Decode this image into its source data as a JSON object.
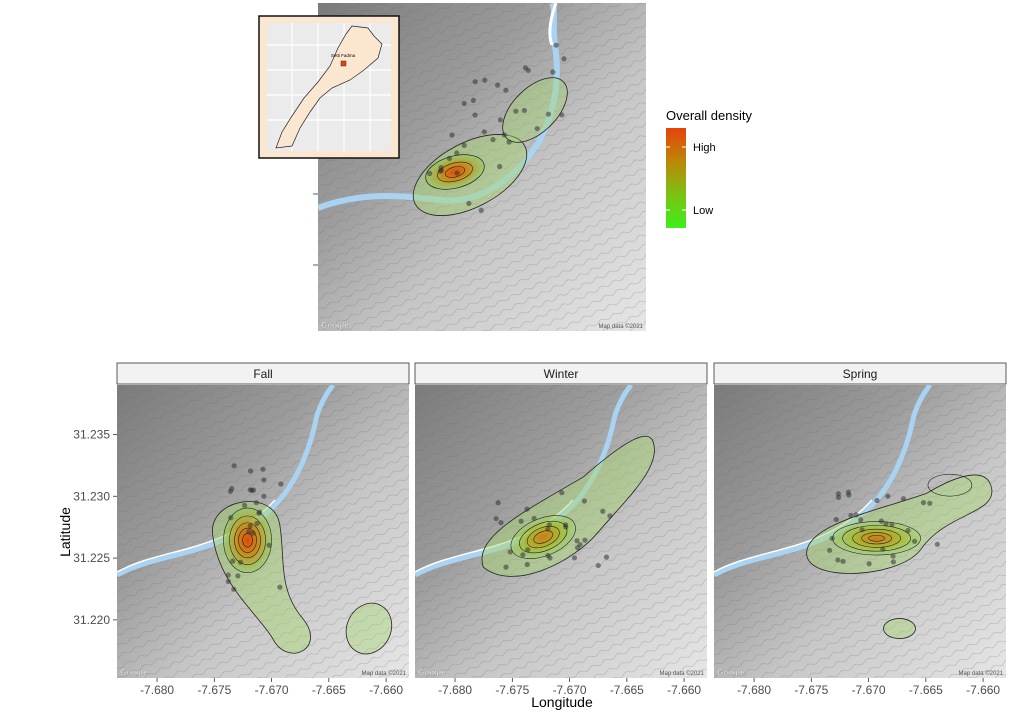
{
  "top_map": {
    "legend": {
      "title": "Overall density",
      "high_label": "High",
      "low_label": "Low",
      "high_color": "#e8420a",
      "low_color": "#3cf01c"
    },
    "inset": {
      "place_label": "Setti Fadma",
      "marker_color": "#e8420a",
      "country_fill": "#fbe6cf"
    },
    "google_mark": "Google",
    "map_credit": "Map data ©2021"
  },
  "facets": [
    {
      "label": "Fall",
      "google_mark": "Google",
      "map_credit": "Map data ©2021"
    },
    {
      "label": "Winter",
      "google_mark": "Google",
      "map_credit": "Map data ©2021"
    },
    {
      "label": "Spring",
      "google_mark": "Google",
      "map_credit": "Map data ©2021"
    }
  ],
  "axes": {
    "xlabel": "Longitude",
    "ylabel": "Latitude",
    "x_ticks": [
      "-7.680",
      "-7.675",
      "-7.670",
      "-7.665",
      "-7.660"
    ],
    "y_ticks": [
      "31.235",
      "31.230",
      "31.225",
      "31.220"
    ],
    "x_tick_values": [
      -7.68,
      -7.675,
      -7.67,
      -7.665,
      -7.66
    ],
    "y_tick_values": [
      31.235,
      31.23,
      31.225,
      31.22
    ],
    "xlim": [
      -7.6835,
      -7.658
    ],
    "ylim": [
      31.2153,
      31.239
    ]
  },
  "density_peaks": {
    "fall": {
      "lon": -7.6721,
      "lat": 31.2266
    },
    "winter": {
      "lon": -7.6723,
      "lat": 31.2267
    },
    "spring": {
      "lon": -7.6693,
      "lat": 31.2266
    }
  }
}
